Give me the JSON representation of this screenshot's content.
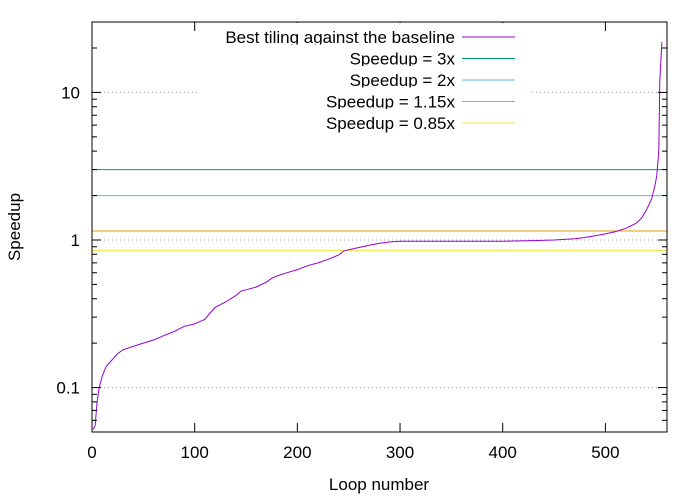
{
  "chart_data": {
    "type": "line",
    "title": "",
    "xlabel": "Loop number",
    "ylabel": "Speedup",
    "xlim": [
      0,
      560
    ],
    "ylim": [
      0.05,
      30
    ],
    "yscale": "log",
    "grid": "y-major dotted",
    "legend_position": "top-right",
    "x_ticks": [
      0,
      100,
      200,
      300,
      400,
      500
    ],
    "y_ticks": [
      0.1,
      1,
      10
    ],
    "x_tick_labels": [
      "0",
      "100",
      "200",
      "300",
      "400",
      "500"
    ],
    "y_tick_labels": [
      "0.1",
      "1",
      "10"
    ],
    "series": [
      {
        "name": "Best tiling against the baseline",
        "color": "#9400d3",
        "x": [
          1,
          3,
          5,
          7,
          10,
          14,
          20,
          25,
          30,
          40,
          50,
          60,
          70,
          80,
          85,
          90,
          100,
          110,
          115,
          120,
          130,
          140,
          145,
          150,
          160,
          170,
          175,
          180,
          190,
          200,
          210,
          220,
          230,
          240,
          245,
          250,
          260,
          270,
          280,
          290,
          300,
          350,
          400,
          430,
          450,
          470,
          480,
          490,
          500,
          510,
          520,
          530,
          535,
          540,
          545,
          548,
          550,
          552,
          553,
          555
        ],
        "y": [
          0.052,
          0.055,
          0.08,
          0.1,
          0.12,
          0.14,
          0.155,
          0.17,
          0.18,
          0.19,
          0.2,
          0.21,
          0.225,
          0.24,
          0.25,
          0.26,
          0.27,
          0.29,
          0.32,
          0.35,
          0.38,
          0.42,
          0.45,
          0.46,
          0.48,
          0.52,
          0.55,
          0.57,
          0.6,
          0.63,
          0.67,
          0.7,
          0.74,
          0.79,
          0.84,
          0.86,
          0.89,
          0.92,
          0.95,
          0.97,
          0.98,
          0.98,
          0.98,
          0.99,
          1.0,
          1.02,
          1.04,
          1.07,
          1.1,
          1.14,
          1.2,
          1.3,
          1.4,
          1.6,
          1.9,
          2.3,
          2.7,
          4.0,
          12.0,
          22.0
        ]
      },
      {
        "name": "Speedup = 3x",
        "color": "#009e73",
        "constant": 3
      },
      {
        "name": "Speedup = 2x",
        "color": "#56b4e9",
        "constant": 2
      },
      {
        "name": "Speedup = 1.15x",
        "color": "#e69f00",
        "constant": 1.15
      },
      {
        "name": "Speedup = 0.85x",
        "color": "#f0e442",
        "constant": 0.85
      }
    ]
  }
}
